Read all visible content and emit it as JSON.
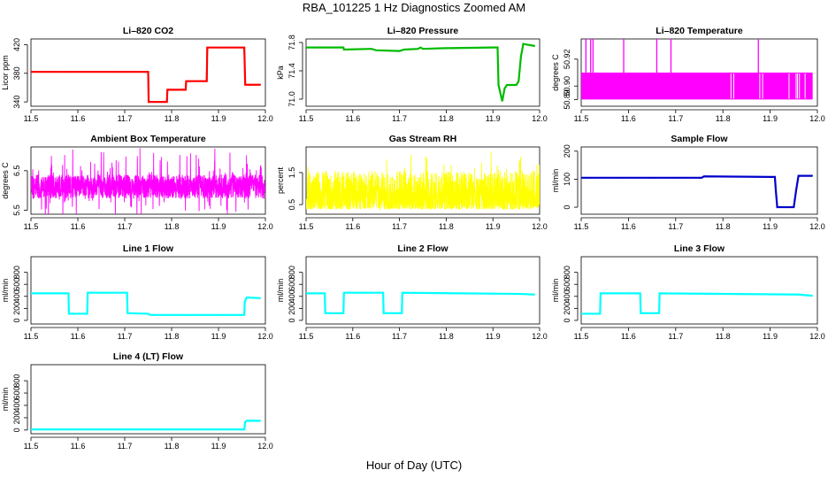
{
  "page": {
    "title": "RBA_101225  1 Hz Diagnostics Zoomed AM",
    "xlabel": "Hour of Day (UTC)"
  },
  "chart_data": [
    {
      "type": "line",
      "title": "Li–820 CO2",
      "ylabel": "Licor ppm",
      "color": "#ff0000",
      "xlim": [
        11.5,
        12.0
      ],
      "ylim": [
        334,
        428
      ],
      "xticks": [
        11.5,
        11.6,
        11.7,
        11.8,
        11.9,
        12.0
      ],
      "xtick_labels": [
        "11.5",
        "11.6",
        "11.7",
        "11.8",
        "11.9",
        "12.0"
      ],
      "yticks": [
        340,
        380,
        420
      ],
      "ytick_labels": [
        "340",
        "380",
        "420"
      ],
      "series": [
        {
          "x": [
            11.5,
            11.75,
            11.751,
            11.79,
            11.791,
            11.83,
            11.831,
            11.875,
            11.876,
            11.955,
            11.957,
            11.99
          ],
          "y": [
            382,
            382,
            340,
            340,
            357,
            357,
            369,
            369,
            416,
            416,
            364,
            364
          ]
        }
      ]
    },
    {
      "type": "line",
      "title": "Li–820 Pressure",
      "ylabel": "kPa",
      "color": "#00bb00",
      "xlim": [
        11.5,
        12.0
      ],
      "ylim": [
        70.9,
        71.85
      ],
      "xticks": [
        11.5,
        11.6,
        11.7,
        11.8,
        11.9,
        12.0
      ],
      "xtick_labels": [
        "11.5",
        "11.6",
        "11.7",
        "11.8",
        "11.9",
        "12.0"
      ],
      "yticks": [
        71.0,
        71.4,
        71.8
      ],
      "ytick_labels": [
        "71.0",
        "71.4",
        "71.8"
      ],
      "series": [
        {
          "x": [
            11.5,
            11.58,
            11.581,
            11.64,
            11.65,
            11.7,
            11.71,
            11.74,
            11.745,
            11.75,
            11.8,
            11.9,
            11.91,
            11.912,
            11.92,
            11.925,
            11.93,
            11.95,
            11.955,
            11.96,
            11.965,
            11.99
          ],
          "y": [
            71.73,
            71.73,
            71.7,
            71.71,
            71.69,
            71.68,
            71.7,
            71.71,
            71.73,
            71.71,
            71.72,
            71.73,
            71.73,
            71.2,
            70.97,
            71.15,
            71.2,
            71.2,
            71.25,
            71.6,
            71.78,
            71.75
          ]
        }
      ]
    },
    {
      "type": "line",
      "title": "Li–820 Temperature",
      "ylabel": "degrees C",
      "color": "#ff00ff",
      "xlim": [
        11.5,
        12.0
      ],
      "ylim": [
        50.885,
        50.935
      ],
      "xticks": [
        11.5,
        11.6,
        11.7,
        11.8,
        11.9,
        12.0
      ],
      "xtick_labels": [
        "11.5",
        "11.6",
        "11.7",
        "11.8",
        "11.9",
        "12.0"
      ],
      "yticks": [
        50.89,
        50.9,
        50.92
      ],
      "ytick_labels": [
        "50.89",
        "50.90",
        "50.92"
      ],
      "series": [
        {
          "x": [
            11.5,
            11.99
          ],
          "y": [
            50.89,
            50.91
          ]
        }
      ],
      "spikes_x": [
        11.51,
        11.52,
        11.525,
        11.59,
        11.66,
        11.69,
        11.875
      ],
      "spikes_y": 50.935
    },
    {
      "type": "line",
      "title": "Ambient Box Temperature",
      "ylabel": "degrees C",
      "color": "#ff00ff",
      "xlim": [
        11.5,
        12.0
      ],
      "ylim": [
        5.4,
        7.1
      ],
      "xticks": [
        11.5,
        11.6,
        11.7,
        11.8,
        11.9,
        12.0
      ],
      "xtick_labels": [
        "11.5",
        "11.6",
        "11.7",
        "11.8",
        "11.9",
        "12.0"
      ],
      "yticks": [
        5.5,
        6.5
      ],
      "ytick_labels": [
        "5.5",
        "6.5"
      ],
      "series": [
        {
          "x": [
            11.5,
            12.0
          ],
          "y": [
            6.1,
            6.1
          ]
        }
      ]
    },
    {
      "type": "line",
      "title": "Gas Stream RH",
      "ylabel": "percent",
      "color": "#ffff00",
      "xlim": [
        11.5,
        12.0
      ],
      "ylim": [
        0.2,
        2.3
      ],
      "xticks": [
        11.5,
        11.6,
        11.7,
        11.8,
        11.9,
        12.0
      ],
      "xtick_labels": [
        "11.5",
        "11.6",
        "11.7",
        "11.8",
        "11.9",
        "12.0"
      ],
      "yticks": [
        0.5,
        1.5
      ],
      "ytick_labels": [
        "0.5",
        "1.5"
      ],
      "series": [
        {
          "x": [
            11.5,
            12.0
          ],
          "y": [
            0.9,
            0.9
          ]
        }
      ]
    },
    {
      "type": "line",
      "title": "Sample Flow",
      "ylabel": "ml/min",
      "color": "#0000cc",
      "xlim": [
        11.5,
        12.0
      ],
      "ylim": [
        -25,
        215
      ],
      "xticks": [
        11.5,
        11.6,
        11.7,
        11.8,
        11.9,
        12.0
      ],
      "xtick_labels": [
        "11.5",
        "11.6",
        "11.7",
        "11.8",
        "11.9",
        "12.0"
      ],
      "yticks": [
        0,
        100,
        200
      ],
      "ytick_labels": [
        "0",
        "100",
        "200"
      ],
      "series": [
        {
          "x": [
            11.5,
            11.755,
            11.76,
            11.9,
            11.91,
            11.912,
            11.915,
            11.95,
            11.955,
            11.96,
            11.99
          ],
          "y": [
            105,
            105,
            110,
            108,
            108,
            60,
            0,
            0,
            60,
            112,
            112
          ]
        }
      ]
    },
    {
      "type": "line",
      "title": "Line 1 Flow",
      "ylabel": "ml/min",
      "color": "#00ffff",
      "xlim": [
        11.5,
        12.0
      ],
      "ylim": [
        -60,
        1060
      ],
      "xticks": [
        11.5,
        11.6,
        11.7,
        11.8,
        11.9,
        12.0
      ],
      "xtick_labels": [
        "11.5",
        "11.6",
        "11.7",
        "11.8",
        "11.9",
        "12.0"
      ],
      "yticks": [
        0,
        200,
        400,
        600,
        800
      ],
      "ytick_labels": [
        "0",
        "200",
        "400",
        "600",
        "800"
      ],
      "series": [
        {
          "x": [
            11.5,
            11.58,
            11.581,
            11.62,
            11.621,
            11.705,
            11.706,
            11.75,
            11.755,
            11.955,
            11.956,
            11.96,
            11.99
          ],
          "y": [
            450,
            450,
            110,
            110,
            460,
            460,
            120,
            110,
            90,
            90,
            310,
            380,
            370
          ]
        }
      ]
    },
    {
      "type": "line",
      "title": "Line 2 Flow",
      "ylabel": "ml/min",
      "color": "#00ffff",
      "xlim": [
        11.5,
        12.0
      ],
      "ylim": [
        -60,
        1060
      ],
      "xticks": [
        11.5,
        11.6,
        11.7,
        11.8,
        11.9,
        12.0
      ],
      "xtick_labels": [
        "11.5",
        "11.6",
        "11.7",
        "11.8",
        "11.9",
        "12.0"
      ],
      "yticks": [
        0,
        200,
        400,
        600,
        800
      ],
      "ytick_labels": [
        "0",
        "200",
        "400",
        "600",
        "800"
      ],
      "series": [
        {
          "x": [
            11.5,
            11.54,
            11.541,
            11.58,
            11.581,
            11.665,
            11.666,
            11.705,
            11.706,
            11.96,
            11.99
          ],
          "y": [
            450,
            450,
            120,
            120,
            460,
            460,
            120,
            120,
            460,
            440,
            430
          ]
        }
      ]
    },
    {
      "type": "line",
      "title": "Line 3 Flow",
      "ylabel": "ml/min",
      "color": "#00ffff",
      "xlim": [
        11.5,
        12.0
      ],
      "ylim": [
        -60,
        1060
      ],
      "xticks": [
        11.5,
        11.6,
        11.7,
        11.8,
        11.9,
        12.0
      ],
      "xtick_labels": [
        "11.5",
        "11.6",
        "11.7",
        "11.8",
        "11.9",
        "12.0"
      ],
      "yticks": [
        0,
        200,
        400,
        600,
        800
      ],
      "ytick_labels": [
        "0",
        "200",
        "400",
        "600",
        "800"
      ],
      "series": [
        {
          "x": [
            11.5,
            11.54,
            11.541,
            11.625,
            11.626,
            11.665,
            11.666,
            11.96,
            11.99
          ],
          "y": [
            110,
            110,
            450,
            450,
            120,
            120,
            450,
            430,
            410
          ]
        }
      ]
    },
    {
      "type": "line",
      "title": "Line 4 (LT) Flow",
      "ylabel": "ml/min",
      "color": "#00ffff",
      "xlim": [
        11.5,
        12.0
      ],
      "ylim": [
        -60,
        1060
      ],
      "xticks": [
        11.5,
        11.6,
        11.7,
        11.8,
        11.9,
        12.0
      ],
      "xtick_labels": [
        "11.5",
        "11.6",
        "11.7",
        "11.8",
        "11.9",
        "12.0"
      ],
      "yticks": [
        0,
        200,
        400,
        600,
        800
      ],
      "ytick_labels": [
        "0",
        "200",
        "400",
        "600",
        "800"
      ],
      "series": [
        {
          "x": [
            11.5,
            11.955,
            11.957,
            11.96,
            11.99
          ],
          "y": [
            10,
            10,
            130,
            150,
            150
          ]
        }
      ]
    }
  ]
}
